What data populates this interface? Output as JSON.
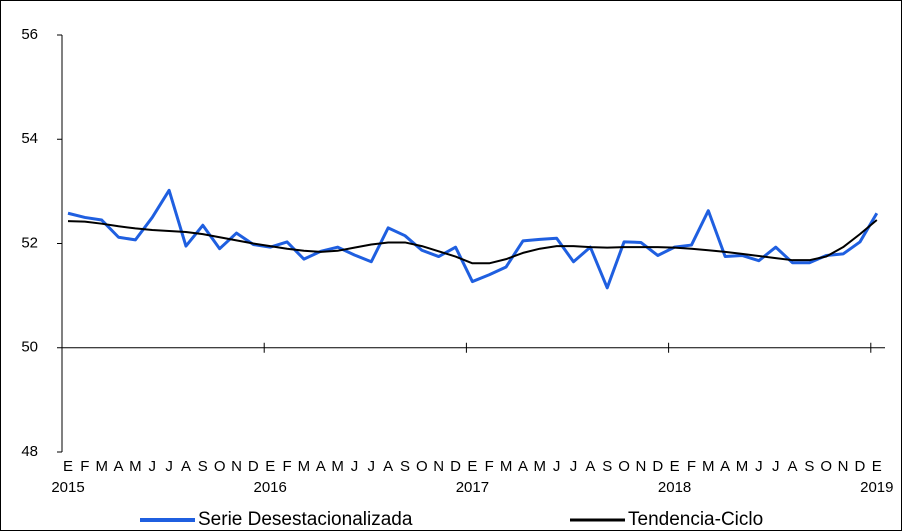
{
  "chart_data": {
    "type": "line",
    "categories": [
      "E",
      "F",
      "M",
      "A",
      "M",
      "J",
      "J",
      "A",
      "S",
      "O",
      "N",
      "D",
      "E",
      "F",
      "M",
      "A",
      "M",
      "J",
      "J",
      "A",
      "S",
      "O",
      "N",
      "D",
      "E",
      "F",
      "M",
      "A",
      "M",
      "J",
      "J",
      "A",
      "S",
      "O",
      "N",
      "D",
      "E",
      "F",
      "M",
      "A",
      "M",
      "J",
      "J",
      "A",
      "S",
      "O",
      "N",
      "D",
      "E"
    ],
    "years": [
      "2015",
      "2016",
      "2017",
      "2018",
      "2019"
    ],
    "series": [
      {
        "name": "Serie Desestacionalizada",
        "color": "#1f5fe0",
        "width": 3,
        "values": [
          52.58,
          52.5,
          52.45,
          52.12,
          52.07,
          52.5,
          53.02,
          51.95,
          52.35,
          51.9,
          52.2,
          51.98,
          51.93,
          52.03,
          51.7,
          51.85,
          51.93,
          51.78,
          51.65,
          52.3,
          52.15,
          51.87,
          51.75,
          51.93,
          51.27,
          51.4,
          51.55,
          52.05,
          52.08,
          52.1,
          51.65,
          51.93,
          51.15,
          52.03,
          52.02,
          51.77,
          51.93,
          51.97,
          52.63,
          51.75,
          51.77,
          51.67,
          51.93,
          51.63,
          51.63,
          51.77,
          51.8,
          52.03,
          52.58
        ]
      },
      {
        "name": "Tendencia-Ciclo",
        "color": "#000000",
        "width": 2,
        "values": [
          52.43,
          52.42,
          52.38,
          52.33,
          52.29,
          52.26,
          52.24,
          52.22,
          52.18,
          52.12,
          52.06,
          52.0,
          51.95,
          51.9,
          51.86,
          51.84,
          51.86,
          51.92,
          51.98,
          52.02,
          52.02,
          51.95,
          51.85,
          51.75,
          51.62,
          51.62,
          51.7,
          51.82,
          51.9,
          51.95,
          51.95,
          51.93,
          51.92,
          51.93,
          51.93,
          51.93,
          51.92,
          51.9,
          51.87,
          51.84,
          51.8,
          51.76,
          51.72,
          51.68,
          51.68,
          51.75,
          51.93,
          52.18,
          52.45
        ]
      }
    ],
    "ylim": [
      48,
      56
    ],
    "yticks": [
      48,
      50,
      52,
      54,
      56
    ],
    "x_axis_at": 50
  }
}
